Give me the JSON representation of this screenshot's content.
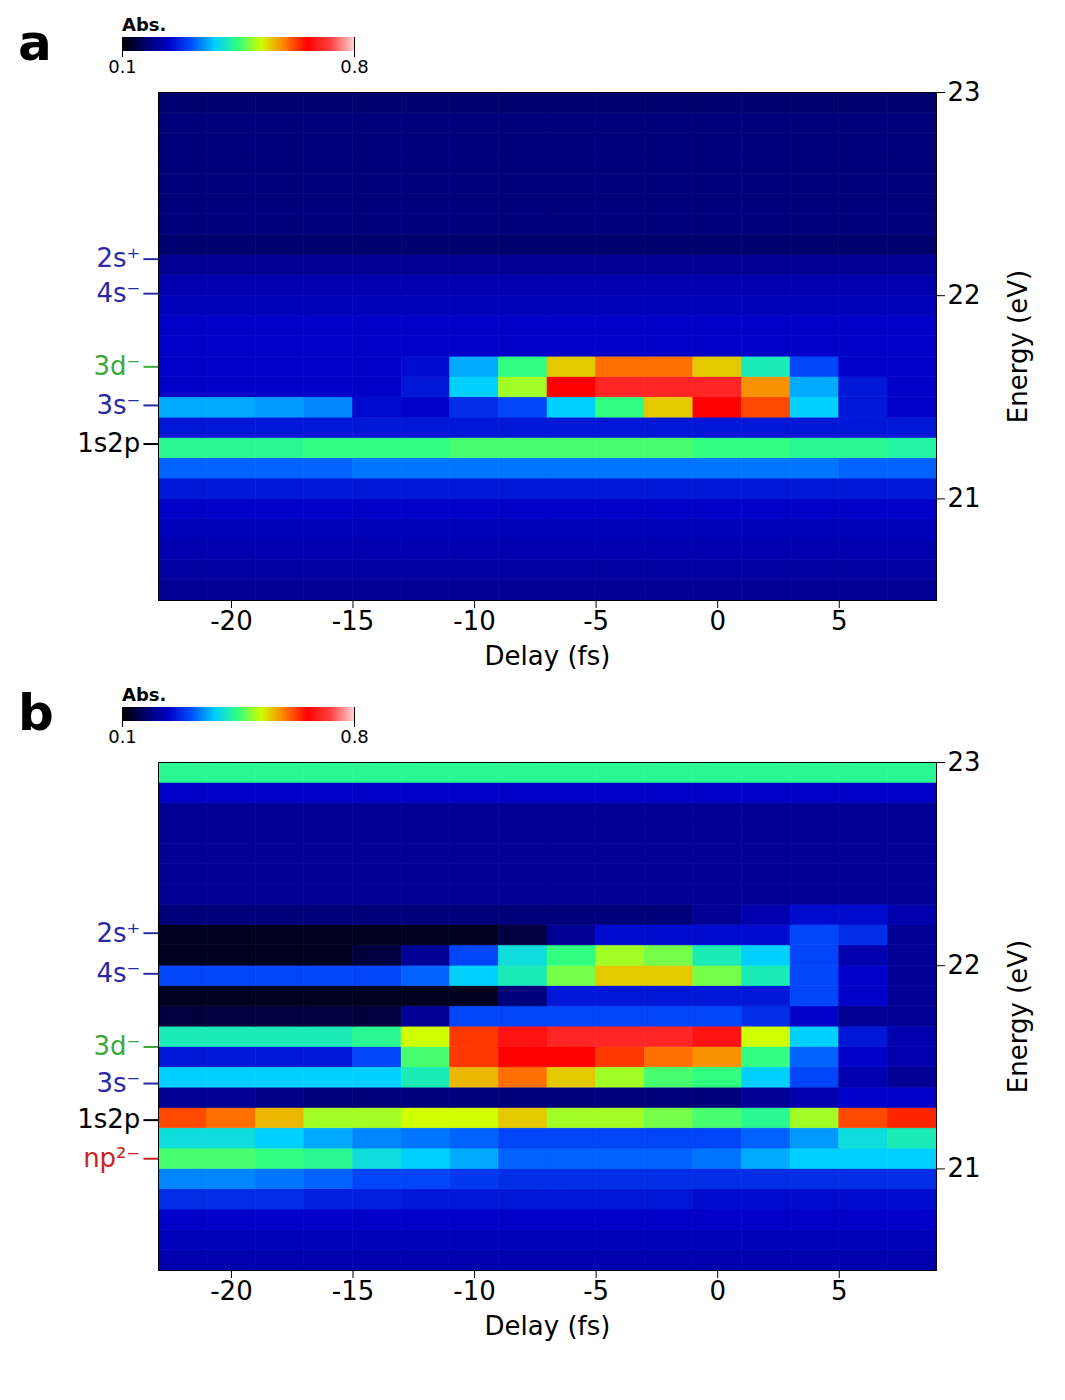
{
  "chart_data": [
    {
      "type": "heatmap",
      "panel_label": "a",
      "x_label": "Delay (fs)",
      "y_label": "Energy (eV)",
      "xlim": [
        -23,
        9
      ],
      "ylim": [
        20.5,
        23
      ],
      "xticks": [
        -20,
        -15,
        -10,
        -5,
        0,
        5
      ],
      "yticks": [
        21,
        22,
        23
      ],
      "legend": "top",
      "colorbar": {
        "label": "Abs.",
        "range": [
          0.1,
          0.8
        ],
        "ticks": [
          0.1,
          0.8
        ]
      },
      "annotations": [
        {
          "text": "2s⁺",
          "y": 22.18,
          "color": "#2a2aa8"
        },
        {
          "text": "4s⁻",
          "y": 22.01,
          "color": "#2a2aa8"
        },
        {
          "text": "3d⁻",
          "y": 21.65,
          "color": "#3aa83a"
        },
        {
          "text": "3s⁻",
          "y": 21.46,
          "color": "#2a2aa8"
        },
        {
          "text": "1s2p",
          "y": 21.27,
          "color": "#000000"
        }
      ],
      "delays": [
        -22,
        -20,
        -18,
        -16,
        -14,
        -12,
        -10,
        -8,
        -6,
        -4,
        -2,
        0,
        2,
        4,
        6,
        8
      ],
      "energies": [
        20.55,
        20.65,
        20.75,
        20.85,
        20.95,
        21.05,
        21.15,
        21.25,
        21.35,
        21.45,
        21.55,
        21.65,
        21.75,
        21.85,
        21.95,
        22.05,
        22.15,
        22.25,
        22.35,
        22.45,
        22.55,
        22.65,
        22.75,
        22.85,
        22.95
      ],
      "values": [
        [
          0.2,
          0.2,
          0.2,
          0.2,
          0.2,
          0.2,
          0.2,
          0.2,
          0.2,
          0.2,
          0.2,
          0.2,
          0.2,
          0.2,
          0.2,
          0.2
        ],
        [
          0.21,
          0.21,
          0.21,
          0.21,
          0.21,
          0.21,
          0.21,
          0.21,
          0.21,
          0.21,
          0.21,
          0.21,
          0.21,
          0.21,
          0.21,
          0.21
        ],
        [
          0.22,
          0.22,
          0.22,
          0.22,
          0.22,
          0.22,
          0.22,
          0.22,
          0.22,
          0.22,
          0.22,
          0.22,
          0.22,
          0.22,
          0.22,
          0.22
        ],
        [
          0.23,
          0.23,
          0.23,
          0.23,
          0.23,
          0.23,
          0.23,
          0.23,
          0.23,
          0.23,
          0.23,
          0.23,
          0.23,
          0.23,
          0.23,
          0.23
        ],
        [
          0.24,
          0.24,
          0.24,
          0.24,
          0.24,
          0.24,
          0.24,
          0.24,
          0.24,
          0.24,
          0.24,
          0.24,
          0.24,
          0.24,
          0.24,
          0.24
        ],
        [
          0.26,
          0.26,
          0.26,
          0.26,
          0.26,
          0.26,
          0.26,
          0.26,
          0.26,
          0.26,
          0.26,
          0.26,
          0.26,
          0.26,
          0.26,
          0.26
        ],
        [
          0.32,
          0.32,
          0.32,
          0.32,
          0.33,
          0.33,
          0.33,
          0.33,
          0.33,
          0.33,
          0.33,
          0.33,
          0.33,
          0.33,
          0.32,
          0.32
        ],
        [
          0.44,
          0.44,
          0.44,
          0.45,
          0.45,
          0.45,
          0.46,
          0.46,
          0.46,
          0.46,
          0.46,
          0.45,
          0.45,
          0.44,
          0.44,
          0.43
        ],
        [
          0.26,
          0.26,
          0.26,
          0.26,
          0.26,
          0.26,
          0.26,
          0.26,
          0.26,
          0.26,
          0.26,
          0.26,
          0.26,
          0.26,
          0.26,
          0.26
        ],
        [
          0.36,
          0.36,
          0.35,
          0.34,
          0.25,
          0.24,
          0.28,
          0.3,
          0.38,
          0.45,
          0.55,
          0.66,
          0.62,
          0.38,
          0.26,
          0.24
        ],
        [
          0.24,
          0.24,
          0.24,
          0.24,
          0.24,
          0.26,
          0.38,
          0.5,
          0.66,
          0.7,
          0.7,
          0.7,
          0.58,
          0.36,
          0.26,
          0.24
        ],
        [
          0.24,
          0.24,
          0.24,
          0.24,
          0.24,
          0.25,
          0.36,
          0.45,
          0.55,
          0.6,
          0.6,
          0.55,
          0.42,
          0.3,
          0.24,
          0.24
        ],
        [
          0.24,
          0.24,
          0.24,
          0.24,
          0.24,
          0.24,
          0.24,
          0.24,
          0.24,
          0.24,
          0.24,
          0.24,
          0.24,
          0.24,
          0.24,
          0.24
        ],
        [
          0.24,
          0.24,
          0.24,
          0.24,
          0.24,
          0.24,
          0.24,
          0.24,
          0.24,
          0.24,
          0.24,
          0.24,
          0.24,
          0.24,
          0.24,
          0.24
        ],
        [
          0.23,
          0.23,
          0.23,
          0.23,
          0.23,
          0.23,
          0.23,
          0.23,
          0.23,
          0.23,
          0.23,
          0.23,
          0.23,
          0.23,
          0.23,
          0.23
        ],
        [
          0.22,
          0.22,
          0.22,
          0.22,
          0.22,
          0.22,
          0.22,
          0.22,
          0.22,
          0.22,
          0.22,
          0.22,
          0.22,
          0.22,
          0.22,
          0.22
        ],
        [
          0.2,
          0.2,
          0.2,
          0.2,
          0.2,
          0.2,
          0.2,
          0.2,
          0.2,
          0.2,
          0.2,
          0.2,
          0.2,
          0.2,
          0.2,
          0.2
        ],
        [
          0.17,
          0.17,
          0.17,
          0.17,
          0.17,
          0.17,
          0.17,
          0.17,
          0.17,
          0.17,
          0.17,
          0.17,
          0.17,
          0.17,
          0.17,
          0.17
        ],
        [
          0.18,
          0.18,
          0.18,
          0.18,
          0.18,
          0.18,
          0.18,
          0.18,
          0.18,
          0.18,
          0.18,
          0.18,
          0.18,
          0.18,
          0.18,
          0.18
        ],
        [
          0.18,
          0.18,
          0.18,
          0.18,
          0.18,
          0.18,
          0.18,
          0.18,
          0.18,
          0.18,
          0.18,
          0.18,
          0.18,
          0.18,
          0.18,
          0.18
        ],
        [
          0.18,
          0.18,
          0.18,
          0.18,
          0.18,
          0.18,
          0.18,
          0.18,
          0.18,
          0.18,
          0.18,
          0.18,
          0.18,
          0.18,
          0.18,
          0.18
        ],
        [
          0.18,
          0.18,
          0.18,
          0.18,
          0.18,
          0.18,
          0.18,
          0.18,
          0.18,
          0.18,
          0.18,
          0.18,
          0.18,
          0.18,
          0.18,
          0.18
        ],
        [
          0.18,
          0.18,
          0.18,
          0.18,
          0.18,
          0.18,
          0.18,
          0.18,
          0.18,
          0.18,
          0.18,
          0.18,
          0.18,
          0.18,
          0.18,
          0.18
        ],
        [
          0.18,
          0.18,
          0.18,
          0.18,
          0.18,
          0.18,
          0.18,
          0.18,
          0.18,
          0.18,
          0.18,
          0.18,
          0.18,
          0.18,
          0.18,
          0.18
        ],
        [
          0.17,
          0.17,
          0.17,
          0.17,
          0.17,
          0.17,
          0.17,
          0.17,
          0.17,
          0.17,
          0.17,
          0.17,
          0.17,
          0.17,
          0.17,
          0.17
        ]
      ]
    },
    {
      "type": "heatmap",
      "panel_label": "b",
      "x_label": "Delay (fs)",
      "y_label": "Energy (eV)",
      "xlim": [
        -23,
        9
      ],
      "ylim": [
        20.5,
        23
      ],
      "xticks": [
        -20,
        -15,
        -10,
        -5,
        0,
        5
      ],
      "yticks": [
        21,
        22,
        23
      ],
      "legend": "top",
      "colorbar": {
        "label": "Abs.",
        "range": [
          0.1,
          0.8
        ],
        "ticks": [
          0.1,
          0.8
        ]
      },
      "annotations": [
        {
          "text": "2s⁺",
          "y": 22.16,
          "color": "#2a2aa8"
        },
        {
          "text": "4s⁻",
          "y": 21.96,
          "color": "#2a2aa8"
        },
        {
          "text": "3d⁻",
          "y": 21.6,
          "color": "#3aa83a"
        },
        {
          "text": "3s⁻",
          "y": 21.42,
          "color": "#2a2aa8"
        },
        {
          "text": "1s2p",
          "y": 21.24,
          "color": "#000000"
        },
        {
          "text": "np²⁻",
          "y": 21.05,
          "color": "#cc2222"
        }
      ],
      "delays": [
        -22,
        -20,
        -18,
        -16,
        -14,
        -12,
        -10,
        -8,
        -6,
        -4,
        -2,
        0,
        2,
        4,
        6,
        8
      ],
      "energies": [
        20.55,
        20.65,
        20.75,
        20.85,
        20.95,
        21.05,
        21.15,
        21.25,
        21.35,
        21.45,
        21.55,
        21.65,
        21.75,
        21.85,
        21.95,
        22.05,
        22.15,
        22.25,
        22.35,
        22.45,
        22.55,
        22.65,
        22.75,
        22.85,
        22.95
      ],
      "values": [
        [
          0.22,
          0.22,
          0.22,
          0.22,
          0.22,
          0.22,
          0.22,
          0.22,
          0.22,
          0.22,
          0.22,
          0.22,
          0.22,
          0.22,
          0.22,
          0.22
        ],
        [
          0.23,
          0.23,
          0.23,
          0.23,
          0.23,
          0.23,
          0.23,
          0.23,
          0.23,
          0.23,
          0.23,
          0.23,
          0.23,
          0.23,
          0.23,
          0.23
        ],
        [
          0.24,
          0.24,
          0.24,
          0.24,
          0.24,
          0.24,
          0.24,
          0.24,
          0.24,
          0.24,
          0.24,
          0.24,
          0.24,
          0.24,
          0.24,
          0.24
        ],
        [
          0.28,
          0.28,
          0.28,
          0.27,
          0.27,
          0.26,
          0.26,
          0.26,
          0.26,
          0.26,
          0.26,
          0.25,
          0.25,
          0.25,
          0.25,
          0.25
        ],
        [
          0.34,
          0.34,
          0.33,
          0.32,
          0.3,
          0.3,
          0.29,
          0.28,
          0.28,
          0.28,
          0.28,
          0.28,
          0.28,
          0.28,
          0.28,
          0.28
        ],
        [
          0.46,
          0.46,
          0.45,
          0.44,
          0.4,
          0.38,
          0.36,
          0.32,
          0.32,
          0.32,
          0.32,
          0.33,
          0.36,
          0.38,
          0.38,
          0.38
        ],
        [
          0.4,
          0.4,
          0.38,
          0.36,
          0.34,
          0.33,
          0.32,
          0.3,
          0.3,
          0.3,
          0.3,
          0.3,
          0.32,
          0.35,
          0.4,
          0.42
        ],
        [
          0.62,
          0.6,
          0.56,
          0.5,
          0.5,
          0.52,
          0.52,
          0.55,
          0.5,
          0.5,
          0.48,
          0.46,
          0.44,
          0.5,
          0.62,
          0.64
        ],
        [
          0.2,
          0.2,
          0.19,
          0.18,
          0.18,
          0.18,
          0.18,
          0.18,
          0.18,
          0.18,
          0.18,
          0.18,
          0.2,
          0.22,
          0.24,
          0.24
        ],
        [
          0.38,
          0.38,
          0.38,
          0.38,
          0.38,
          0.42,
          0.56,
          0.6,
          0.55,
          0.5,
          0.46,
          0.45,
          0.38,
          0.3,
          0.22,
          0.2
        ],
        [
          0.26,
          0.26,
          0.26,
          0.26,
          0.3,
          0.46,
          0.63,
          0.66,
          0.66,
          0.63,
          0.6,
          0.58,
          0.45,
          0.32,
          0.24,
          0.22
        ],
        [
          0.42,
          0.42,
          0.42,
          0.42,
          0.44,
          0.52,
          0.63,
          0.68,
          0.7,
          0.7,
          0.7,
          0.68,
          0.52,
          0.38,
          0.26,
          0.22
        ],
        [
          0.14,
          0.14,
          0.14,
          0.14,
          0.14,
          0.2,
          0.3,
          0.3,
          0.3,
          0.3,
          0.3,
          0.3,
          0.28,
          0.24,
          0.2,
          0.2
        ],
        [
          0.12,
          0.12,
          0.12,
          0.12,
          0.12,
          0.12,
          0.12,
          0.18,
          0.26,
          0.26,
          0.26,
          0.26,
          0.26,
          0.3,
          0.24,
          0.2
        ],
        [
          0.3,
          0.3,
          0.3,
          0.3,
          0.3,
          0.32,
          0.38,
          0.42,
          0.48,
          0.55,
          0.55,
          0.48,
          0.42,
          0.3,
          0.24,
          0.2
        ],
        [
          0.12,
          0.12,
          0.12,
          0.12,
          0.14,
          0.2,
          0.3,
          0.4,
          0.45,
          0.5,
          0.48,
          0.42,
          0.38,
          0.3,
          0.22,
          0.2
        ],
        [
          0.12,
          0.12,
          0.12,
          0.12,
          0.12,
          0.12,
          0.12,
          0.14,
          0.2,
          0.25,
          0.25,
          0.25,
          0.25,
          0.3,
          0.28,
          0.2
        ],
        [
          0.18,
          0.18,
          0.18,
          0.18,
          0.18,
          0.18,
          0.18,
          0.18,
          0.18,
          0.18,
          0.18,
          0.2,
          0.22,
          0.25,
          0.25,
          0.22
        ],
        [
          0.2,
          0.2,
          0.2,
          0.2,
          0.2,
          0.2,
          0.2,
          0.2,
          0.2,
          0.2,
          0.2,
          0.2,
          0.2,
          0.2,
          0.2,
          0.2
        ],
        [
          0.2,
          0.2,
          0.2,
          0.2,
          0.2,
          0.2,
          0.2,
          0.2,
          0.2,
          0.2,
          0.2,
          0.2,
          0.2,
          0.2,
          0.2,
          0.2
        ],
        [
          0.2,
          0.2,
          0.2,
          0.2,
          0.2,
          0.2,
          0.2,
          0.2,
          0.2,
          0.2,
          0.2,
          0.2,
          0.2,
          0.2,
          0.2,
          0.2
        ],
        [
          0.2,
          0.2,
          0.2,
          0.2,
          0.2,
          0.2,
          0.2,
          0.2,
          0.2,
          0.2,
          0.2,
          0.2,
          0.2,
          0.2,
          0.2,
          0.2
        ],
        [
          0.2,
          0.2,
          0.2,
          0.2,
          0.2,
          0.2,
          0.2,
          0.2,
          0.2,
          0.2,
          0.2,
          0.2,
          0.2,
          0.2,
          0.2,
          0.2
        ],
        [
          0.24,
          0.24,
          0.24,
          0.24,
          0.24,
          0.24,
          0.24,
          0.24,
          0.24,
          0.24,
          0.24,
          0.24,
          0.24,
          0.24,
          0.24,
          0.24
        ],
        [
          0.44,
          0.44,
          0.44,
          0.44,
          0.44,
          0.44,
          0.44,
          0.44,
          0.44,
          0.44,
          0.44,
          0.44,
          0.44,
          0.44,
          0.44,
          0.44
        ]
      ]
    }
  ]
}
